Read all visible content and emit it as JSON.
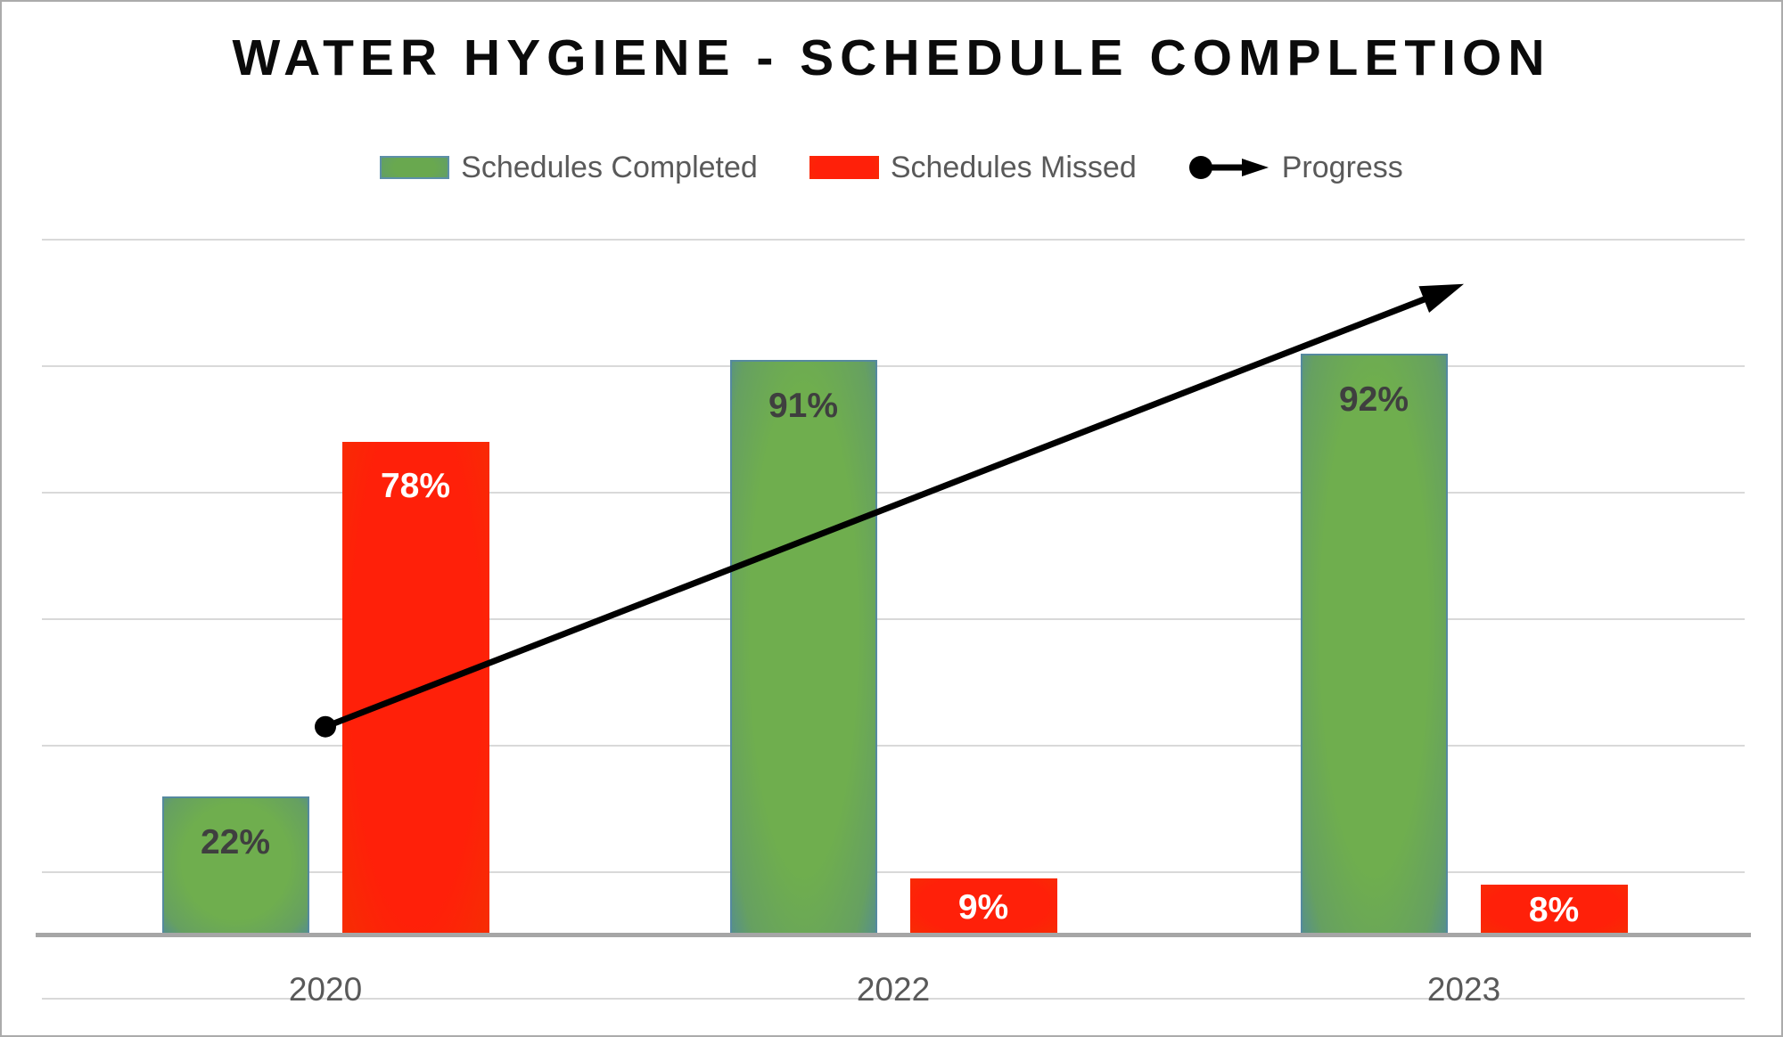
{
  "title": "WATER HYGIENE - SCHEDULE COMPLETION",
  "legend": {
    "items": [
      {
        "label": "Schedules Completed",
        "marker": "green-swatch"
      },
      {
        "label": "Schedules Missed",
        "marker": "red-swatch"
      },
      {
        "label": "Progress",
        "marker": "dot-arrow-line"
      }
    ]
  },
  "colors": {
    "completed_fill": "#69a84f",
    "completed_edge": "#4e86a4",
    "missed_fill": "#ff2009",
    "missed_edge": "#f23400",
    "trend": "#000000",
    "gridline": "#d9d9d9",
    "axis_line": "#a6a6a6",
    "axis_text": "#595959",
    "title_text": "#0b0b0b",
    "value_label_dark": "#3f3f3f",
    "value_label_light": "#ffffff"
  },
  "chart_data": {
    "type": "bar",
    "title": "WATER HYGIENE - SCHEDULE COMPLETION",
    "categories": [
      "2020",
      "2022",
      "2023"
    ],
    "series": [
      {
        "name": "Schedules Completed",
        "key": "completed",
        "values": [
          22,
          91,
          92
        ],
        "labels": [
          "22%",
          "91%",
          "92%"
        ],
        "label_color": "#3f3f3f"
      },
      {
        "name": "Schedules Missed",
        "key": "missed",
        "values": [
          78,
          9,
          8
        ],
        "labels": [
          "78%",
          "9%",
          "8%"
        ],
        "label_color": "#ffffff"
      }
    ],
    "value_suffix": "%",
    "xlabel": "",
    "ylabel": "",
    "ylim": [
      -10,
      110
    ],
    "gridline_step": 20,
    "grid": "horizontal",
    "legend_position": "top",
    "y_tick_labels_visible": false,
    "trendline": {
      "name": "Progress",
      "start": {
        "category": "2020",
        "value": 33
      },
      "end": {
        "category": "2023",
        "value": 103
      }
    }
  }
}
